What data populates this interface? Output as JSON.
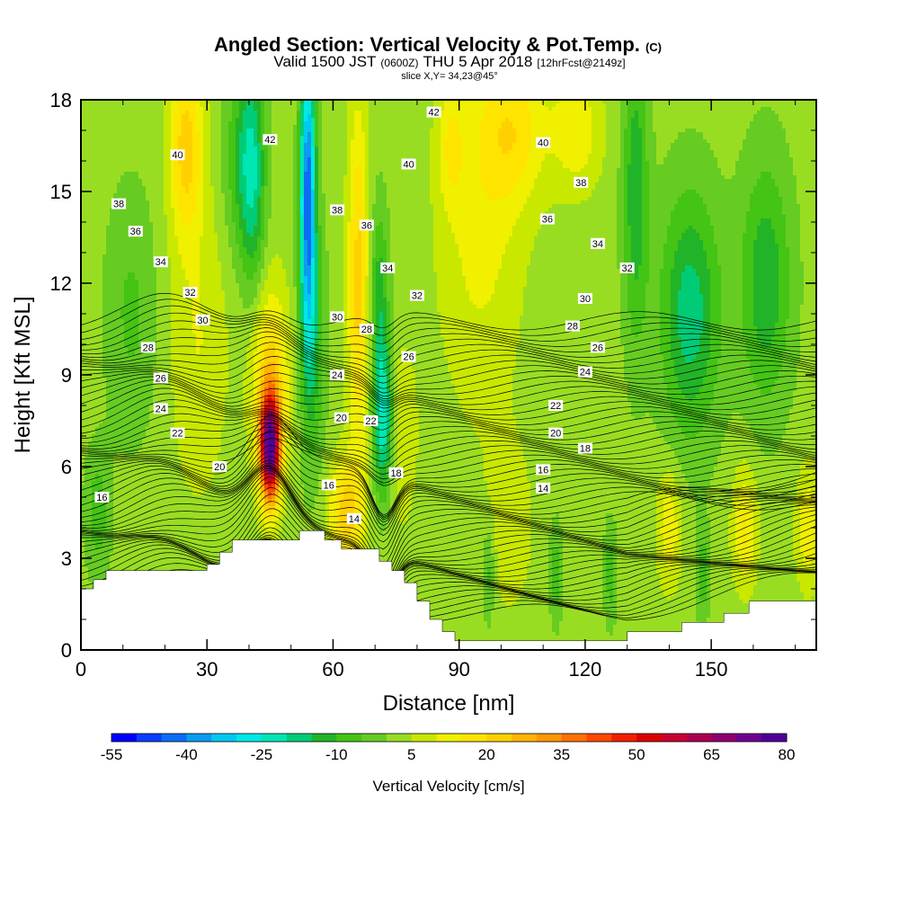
{
  "header": {
    "title_main": "Angled Section: Vertical Velocity & Pot.Temp.",
    "title_unit": "(C)",
    "subtitle_a": "Valid 1500 JST",
    "subtitle_b": "(0600Z)",
    "subtitle_c": "THU 5 Apr 2018",
    "subtitle_d": "[12hrFcst@2149z]",
    "slice": "slice X,Y= 34,23@45°"
  },
  "chart_data": {
    "type": "heatmap",
    "xlabel": "Distance [nm]",
    "ylabel": "Height [Kft MSL]",
    "xlim": [
      0,
      175
    ],
    "ylim": [
      0,
      18
    ],
    "xticks": [
      0,
      30,
      60,
      90,
      120,
      150
    ],
    "yticks": [
      0,
      3,
      6,
      9,
      12,
      15,
      18
    ],
    "colorbar": {
      "label": "Vertical Velocity [cm/s]",
      "min": -55,
      "max": 80,
      "step": 5,
      "tick_labels": [
        "-55",
        "-40",
        "-25",
        "-10",
        "5",
        "20",
        "35",
        "50",
        "65",
        "80"
      ],
      "colors": [
        "#0000ff",
        "#0a3cff",
        "#0d6cf5",
        "#0b9bf0",
        "#00c8f0",
        "#00e8e6",
        "#00e6b4",
        "#00cc78",
        "#22b428",
        "#44c414",
        "#66cc22",
        "#99dd22",
        "#c8e800",
        "#f0f000",
        "#ffe400",
        "#ffd000",
        "#ffb400",
        "#ff9600",
        "#ff7000",
        "#ff4800",
        "#f02000",
        "#dc0000",
        "#c80032",
        "#aa0050",
        "#8c0070",
        "#6e0090",
        "#500096"
      ]
    },
    "terrain": [
      [
        0,
        2.0
      ],
      [
        3,
        2.0
      ],
      [
        3,
        2.3
      ],
      [
        6,
        2.3
      ],
      [
        6,
        2.6
      ],
      [
        9,
        2.6
      ],
      [
        9,
        2.6
      ],
      [
        12,
        2.6
      ],
      [
        12,
        2.6
      ],
      [
        16,
        2.6
      ],
      [
        30,
        2.6
      ],
      [
        30,
        2.8
      ],
      [
        33,
        2.8
      ],
      [
        33,
        3.2
      ],
      [
        36,
        3.2
      ],
      [
        36,
        3.6
      ],
      [
        52,
        3.6
      ],
      [
        52,
        3.9
      ],
      [
        58,
        3.9
      ],
      [
        58,
        3.6
      ],
      [
        62,
        3.6
      ],
      [
        62,
        3.3
      ],
      [
        71,
        3.3
      ],
      [
        71,
        2.9
      ],
      [
        74,
        2.9
      ],
      [
        74,
        2.6
      ],
      [
        77,
        2.6
      ],
      [
        77,
        2.2
      ],
      [
        80,
        2.2
      ],
      [
        80,
        1.6
      ],
      [
        83,
        1.6
      ],
      [
        83,
        1.0
      ],
      [
        86,
        1.0
      ],
      [
        86,
        0.6
      ],
      [
        89,
        0.6
      ],
      [
        89,
        0.3
      ],
      [
        130,
        0.3
      ],
      [
        130,
        0.6
      ],
      [
        143,
        0.6
      ],
      [
        143,
        0.9
      ],
      [
        153,
        0.9
      ],
      [
        153,
        1.2
      ],
      [
        159,
        1.2
      ],
      [
        159,
        1.6
      ],
      [
        175,
        1.6
      ]
    ],
    "isentrope_labels": [
      {
        "x": 5,
        "y": 5.0,
        "text": "16"
      },
      {
        "x": 33,
        "y": 6.0,
        "text": "20"
      },
      {
        "x": 23,
        "y": 7.1,
        "text": "22"
      },
      {
        "x": 19,
        "y": 7.9,
        "text": "24"
      },
      {
        "x": 19,
        "y": 8.9,
        "text": "26"
      },
      {
        "x": 16,
        "y": 9.9,
        "text": "28"
      },
      {
        "x": 29,
        "y": 10.8,
        "text": "30"
      },
      {
        "x": 26,
        "y": 11.7,
        "text": "32"
      },
      {
        "x": 19,
        "y": 12.7,
        "text": "34"
      },
      {
        "x": 13,
        "y": 13.7,
        "text": "36"
      },
      {
        "x": 9,
        "y": 14.6,
        "text": "38"
      },
      {
        "x": 23,
        "y": 16.2,
        "text": "40"
      },
      {
        "x": 45,
        "y": 16.7,
        "text": "42"
      },
      {
        "x": 84,
        "y": 17.6,
        "text": "42"
      },
      {
        "x": 78,
        "y": 15.9,
        "text": "40"
      },
      {
        "x": 110,
        "y": 16.6,
        "text": "40"
      },
      {
        "x": 61,
        "y": 14.4,
        "text": "38"
      },
      {
        "x": 119,
        "y": 15.3,
        "text": "38"
      },
      {
        "x": 68,
        "y": 13.9,
        "text": "36"
      },
      {
        "x": 111,
        "y": 14.1,
        "text": "36"
      },
      {
        "x": 73,
        "y": 12.5,
        "text": "34"
      },
      {
        "x": 123,
        "y": 13.3,
        "text": "34"
      },
      {
        "x": 80,
        "y": 11.6,
        "text": "32"
      },
      {
        "x": 130,
        "y": 12.5,
        "text": "32"
      },
      {
        "x": 61,
        "y": 10.9,
        "text": "30"
      },
      {
        "x": 120,
        "y": 11.5,
        "text": "30"
      },
      {
        "x": 68,
        "y": 10.5,
        "text": "28"
      },
      {
        "x": 117,
        "y": 10.6,
        "text": "28"
      },
      {
        "x": 78,
        "y": 9.6,
        "text": "26"
      },
      {
        "x": 123,
        "y": 9.9,
        "text": "26"
      },
      {
        "x": 61,
        "y": 9.0,
        "text": "24"
      },
      {
        "x": 120,
        "y": 9.1,
        "text": "24"
      },
      {
        "x": 62,
        "y": 7.6,
        "text": "20"
      },
      {
        "x": 69,
        "y": 7.5,
        "text": "22"
      },
      {
        "x": 113,
        "y": 8.0,
        "text": "22"
      },
      {
        "x": 113,
        "y": 7.1,
        "text": "20"
      },
      {
        "x": 120,
        "y": 6.6,
        "text": "18"
      },
      {
        "x": 75,
        "y": 5.8,
        "text": "18"
      },
      {
        "x": 110,
        "y": 5.9,
        "text": "16"
      },
      {
        "x": 59,
        "y": 5.4,
        "text": "16"
      },
      {
        "x": 110,
        "y": 5.3,
        "text": "14"
      },
      {
        "x": 65,
        "y": 4.3,
        "text": "14"
      }
    ],
    "velocity_extremes": {
      "max_cm_s": 75,
      "min_cm_s": -50
    }
  }
}
